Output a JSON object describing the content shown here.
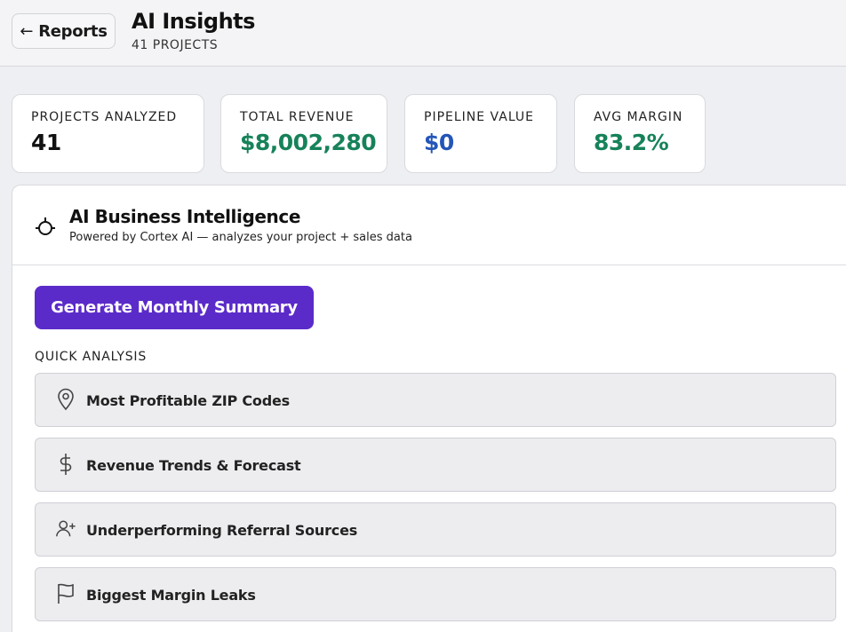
{
  "header": {
    "back_label": "Reports",
    "title": "AI Insights",
    "subtitle": "41 PROJECTS"
  },
  "stats": [
    {
      "label": "PROJECTS ANALYZED",
      "value": "41",
      "color": "#111111"
    },
    {
      "label": "TOTAL REVENUE",
      "value": "$8,002,280",
      "color": "#17825a"
    },
    {
      "label": "PIPELINE VALUE",
      "value": "$0",
      "color": "#2456b8"
    },
    {
      "label": "AVG MARGIN",
      "value": "83.2%",
      "color": "#17825a"
    }
  ],
  "panel": {
    "icon": "bot-icon",
    "title": "AI Business Intelligence",
    "subtitle": "Powered by Cortex AI — analyzes your project + sales data",
    "generate_label": "Generate Monthly Summary",
    "accent": "#5b2bc9",
    "quick_label": "QUICK ANALYSIS",
    "quick_items": [
      {
        "icon": "map-pin-icon",
        "label": "Most Profitable ZIP Codes"
      },
      {
        "icon": "dollar-icon",
        "label": "Revenue Trends & Forecast"
      },
      {
        "icon": "user-plus-icon",
        "label": "Underperforming Referral Sources"
      },
      {
        "icon": "flag-icon",
        "label": "Biggest Margin Leaks"
      }
    ]
  }
}
